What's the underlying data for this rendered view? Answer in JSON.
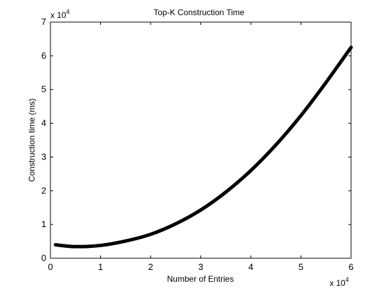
{
  "chart_data": {
    "type": "line",
    "title": "Top-K Construction Time",
    "xlabel": "Number of Entries",
    "ylabel": "Construction time (ms)",
    "x_multiplier": {
      "base": "x 10",
      "exponent": "4"
    },
    "y_multiplier": {
      "base": "x 10",
      "exponent": "4"
    },
    "xlim": [
      0,
      60000
    ],
    "ylim": [
      0,
      70000
    ],
    "x_ticks": [
      0,
      10000,
      20000,
      30000,
      40000,
      50000,
      60000
    ],
    "y_ticks": [
      0,
      10000,
      20000,
      30000,
      40000,
      50000,
      60000,
      70000
    ],
    "x_tick_labels": [
      "0",
      "1",
      "2",
      "3",
      "4",
      "5",
      "6"
    ],
    "y_tick_labels": [
      "0",
      "1",
      "2",
      "3",
      "4",
      "5",
      "6",
      "7"
    ],
    "grid": false,
    "legend": "none",
    "colors": {
      "line": "#000000",
      "axes": "#000000",
      "background": "#ffffff"
    },
    "series": [
      {
        "x": [
          1000,
          5000,
          10000,
          15000,
          20000,
          25000,
          30000,
          35000,
          40000,
          45000,
          50000,
          55000,
          60000
        ],
        "y": [
          4000,
          3450,
          3800,
          5100,
          7100,
          10200,
          14300,
          19600,
          26000,
          33600,
          42300,
          52100,
          62500
        ]
      }
    ]
  }
}
